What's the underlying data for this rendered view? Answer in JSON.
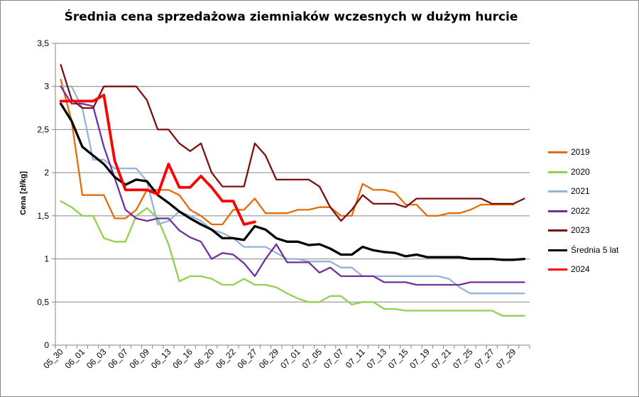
{
  "chart_data": {
    "type": "line",
    "title": "Średnia cena sprzedażowa ziemniaków  wczesnych w dużym hurcie",
    "ylabel": "Cena [zł/kg]",
    "xlabel": "",
    "ylim": [
      0,
      3.5
    ],
    "grid": true,
    "legend_position": "right",
    "y_ticks": [
      "0",
      "0,5",
      "1",
      "1,5",
      "2",
      "2,5",
      "3",
      "3,5"
    ],
    "x_tick_labels": [
      "05_30",
      "06_01",
      "06_03",
      "06_07",
      "06_09",
      "06_13",
      "06_16",
      "06_20",
      "06_22",
      "06_27",
      "06_29",
      "07_01",
      "07_05",
      "07_07",
      "07_11",
      "07_13",
      "07_15",
      "07_19",
      "07_21",
      "07_25",
      "07_27",
      "07_29"
    ],
    "x_points": 44,
    "series": [
      {
        "name": "2019",
        "color": "#E46C0A",
        "width": 2.3,
        "values": [
          3.08,
          2.6,
          1.74,
          1.74,
          1.74,
          1.47,
          1.47,
          1.57,
          1.8,
          1.8,
          1.8,
          1.74,
          1.57,
          1.5,
          1.4,
          1.4,
          1.57,
          1.57,
          1.7,
          1.53,
          1.53,
          1.53,
          1.57,
          1.57,
          1.6,
          1.6,
          1.5,
          1.5,
          1.87,
          1.8,
          1.8,
          1.77,
          1.63,
          1.63,
          1.5,
          1.5,
          1.53,
          1.53,
          1.57,
          1.63,
          1.63,
          1.63,
          1.63,
          null
        ]
      },
      {
        "name": "2020",
        "color": "#92D050",
        "width": 2.3,
        "values": [
          1.67,
          1.6,
          1.5,
          1.5,
          1.24,
          1.2,
          1.2,
          1.5,
          1.59,
          1.47,
          1.17,
          0.74,
          0.8,
          0.8,
          0.77,
          0.7,
          0.7,
          0.77,
          0.7,
          0.7,
          0.67,
          0.6,
          0.54,
          0.5,
          0.5,
          0.57,
          0.57,
          0.47,
          0.5,
          0.5,
          0.42,
          0.42,
          0.4,
          0.4,
          0.4,
          0.4,
          0.4,
          0.4,
          0.4,
          0.4,
          0.4,
          0.34,
          0.34,
          0.34
        ]
      },
      {
        "name": "2021",
        "color": "#95B3D7",
        "width": 2.3,
        "values": [
          3.0,
          3.0,
          2.75,
          2.15,
          2.15,
          2.05,
          2.05,
          2.05,
          1.9,
          1.4,
          1.44,
          1.55,
          1.5,
          1.44,
          1.34,
          1.3,
          1.24,
          1.14,
          1.14,
          1.14,
          1.07,
          1.0,
          1.0,
          0.97,
          0.97,
          0.97,
          0.9,
          0.9,
          0.8,
          0.8,
          0.8,
          0.8,
          0.8,
          0.8,
          0.8,
          0.8,
          0.77,
          0.67,
          0.6,
          0.6,
          0.6,
          0.6,
          0.6,
          0.6
        ]
      },
      {
        "name": "2022",
        "color": "#7030A0",
        "width": 2.3,
        "values": [
          3.0,
          2.8,
          2.8,
          2.77,
          2.3,
          1.94,
          1.57,
          1.47,
          1.44,
          1.47,
          1.47,
          1.33,
          1.25,
          1.2,
          1.0,
          1.07,
          1.05,
          0.95,
          0.8,
          1.0,
          1.17,
          0.96,
          0.96,
          0.96,
          0.84,
          0.9,
          0.8,
          0.8,
          0.8,
          0.8,
          0.73,
          0.73,
          0.73,
          0.7,
          0.7,
          0.7,
          0.7,
          0.7,
          0.73,
          0.73,
          0.73,
          0.73,
          0.73,
          0.73
        ]
      },
      {
        "name": "2023",
        "color": "#7B1010",
        "width": 2.3,
        "values": [
          3.25,
          2.85,
          2.75,
          2.75,
          3.0,
          3.0,
          3.0,
          3.0,
          2.84,
          2.5,
          2.5,
          2.34,
          2.25,
          2.34,
          2.0,
          1.84,
          1.84,
          1.84,
          2.34,
          2.2,
          1.92,
          1.92,
          1.92,
          1.92,
          1.84,
          1.6,
          1.44,
          1.57,
          1.74,
          1.64,
          1.64,
          1.64,
          1.6,
          1.7,
          1.7,
          1.7,
          1.7,
          1.7,
          1.7,
          1.7,
          1.64,
          1.64,
          1.64,
          1.7
        ]
      },
      {
        "name": "Średnia 5 lat",
        "color": "#000000",
        "width": 3.3,
        "values": [
          2.8,
          2.6,
          2.3,
          2.2,
          2.1,
          1.95,
          1.86,
          1.92,
          1.9,
          1.74,
          1.65,
          1.55,
          1.47,
          1.4,
          1.34,
          1.24,
          1.24,
          1.22,
          1.38,
          1.34,
          1.24,
          1.2,
          1.2,
          1.16,
          1.17,
          1.12,
          1.05,
          1.05,
          1.14,
          1.1,
          1.08,
          1.07,
          1.03,
          1.05,
          1.02,
          1.02,
          1.02,
          1.02,
          1.0,
          1.0,
          1.0,
          0.99,
          0.99,
          1.0
        ]
      },
      {
        "name": "2024",
        "color": "#FF0000",
        "width": 3.8,
        "values": [
          2.83,
          2.83,
          2.83,
          2.83,
          2.9,
          2.14,
          1.8,
          1.8,
          1.8,
          1.75,
          2.1,
          1.83,
          1.83,
          1.96,
          1.83,
          1.67,
          1.67,
          1.4,
          1.43,
          null,
          null,
          null,
          null,
          null,
          null,
          null,
          null,
          null,
          null,
          null,
          null,
          null,
          null,
          null,
          null,
          null,
          null,
          null,
          null,
          null,
          null,
          null,
          null,
          null
        ]
      }
    ]
  }
}
